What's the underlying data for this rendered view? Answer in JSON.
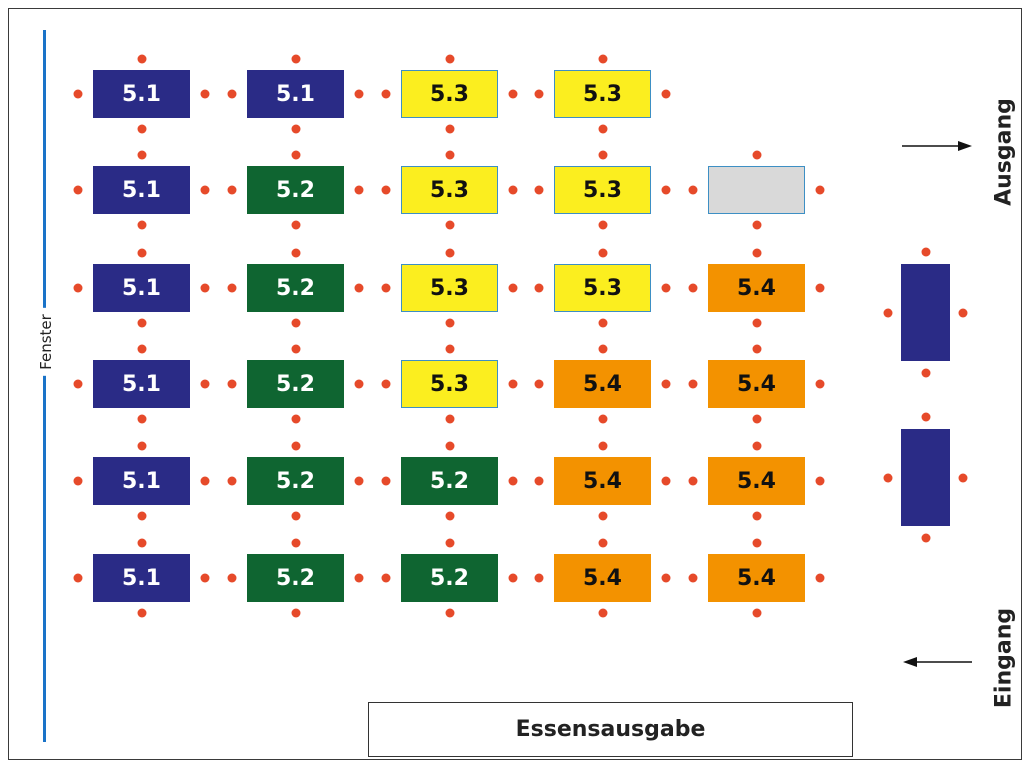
{
  "labels": {
    "fenster": "Fenster",
    "ausgang": "Ausgang",
    "eingang": "Eingang",
    "essensausgabe": "Essensausgabe"
  },
  "colors": {
    "navy": "#2a2b86",
    "green": "#0f6531",
    "yellow": "#fbee1f",
    "orange": "#f39200",
    "gray": "#d9d9d9",
    "seat": "#e64a2a",
    "window_line": "#1a73c8"
  },
  "grid": [
    [
      {
        "label": "5.1",
        "color": "navy"
      },
      {
        "label": "5.1",
        "color": "navy"
      },
      {
        "label": "5.3",
        "color": "yellow"
      },
      {
        "label": "5.3",
        "color": "yellow"
      },
      null
    ],
    [
      {
        "label": "5.1",
        "color": "navy"
      },
      {
        "label": "5.2",
        "color": "green"
      },
      {
        "label": "5.3",
        "color": "yellow"
      },
      {
        "label": "5.3",
        "color": "yellow"
      },
      {
        "label": "",
        "color": "gray"
      }
    ],
    [
      {
        "label": "5.1",
        "color": "navy"
      },
      {
        "label": "5.2",
        "color": "green"
      },
      {
        "label": "5.3",
        "color": "yellow"
      },
      {
        "label": "5.3",
        "color": "yellow"
      },
      {
        "label": "5.4",
        "color": "orange"
      }
    ],
    [
      {
        "label": "5.1",
        "color": "navy"
      },
      {
        "label": "5.2",
        "color": "green"
      },
      {
        "label": "5.3",
        "color": "yellow"
      },
      {
        "label": "5.4",
        "color": "orange"
      },
      {
        "label": "5.4",
        "color": "orange"
      }
    ],
    [
      {
        "label": "5.1",
        "color": "navy"
      },
      {
        "label": "5.2",
        "color": "green"
      },
      {
        "label": "5.2",
        "color": "green"
      },
      {
        "label": "5.4",
        "color": "orange"
      },
      {
        "label": "5.4",
        "color": "orange"
      }
    ],
    [
      {
        "label": "5.1",
        "color": "navy"
      },
      {
        "label": "5.2",
        "color": "green"
      },
      {
        "label": "5.2",
        "color": "green"
      },
      {
        "label": "5.4",
        "color": "orange"
      },
      {
        "label": "5.4",
        "color": "orange"
      }
    ]
  ],
  "side_tables": [
    {
      "label": "",
      "color": "navy"
    },
    {
      "label": "",
      "color": "navy"
    }
  ]
}
